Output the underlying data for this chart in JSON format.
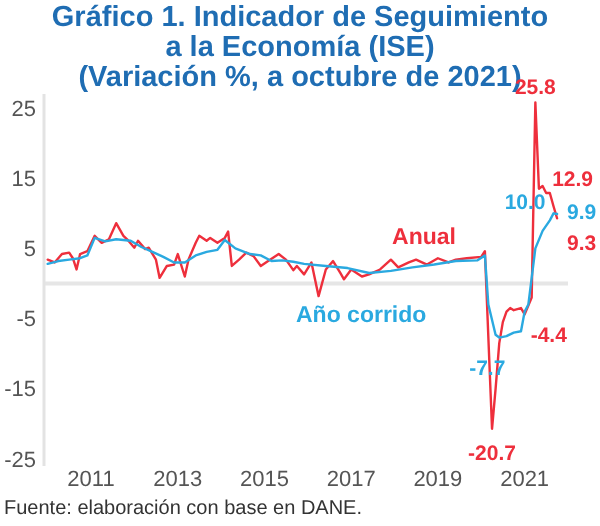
{
  "chart_data": {
    "type": "line",
    "title": "Gráfico 1. Indicador de Seguimiento a la Economía (ISE) (Variación %, a octubre de 2021)",
    "series": [
      {
        "name": "Anual",
        "color": "#ee2f3c",
        "x": [
          "2010-01",
          "2010-03",
          "2010-05",
          "2010-07",
          "2010-08",
          "2010-09",
          "2010-10",
          "2010-12",
          "2011-02",
          "2011-04",
          "2011-06",
          "2011-08",
          "2011-10",
          "2011-11",
          "2012-01",
          "2012-02",
          "2012-04",
          "2012-05",
          "2012-07",
          "2012-08",
          "2012-10",
          "2012-12",
          "2013-01",
          "2013-03",
          "2013-04",
          "2013-06",
          "2013-07",
          "2013-09",
          "2013-10",
          "2013-12",
          "2014-02",
          "2014-03",
          "2014-04",
          "2014-06",
          "2014-08",
          "2014-10",
          "2014-12",
          "2015-02",
          "2015-05",
          "2015-07",
          "2015-09",
          "2015-10",
          "2015-12",
          "2016-02",
          "2016-04",
          "2016-06",
          "2016-08",
          "2016-10",
          "2016-11",
          "2017-01",
          "2017-04",
          "2017-06",
          "2017-09",
          "2017-12",
          "2018-02",
          "2018-05",
          "2018-07",
          "2018-10",
          "2019-01",
          "2019-04",
          "2019-06",
          "2019-09",
          "2020-01",
          "2020-02",
          "2020-04",
          "2020-05",
          "2020-06",
          "2020-07",
          "2020-08",
          "2020-09",
          "2020-10",
          "2020-12",
          "2021-01",
          "2021-03",
          "2021-04",
          "2021-05",
          "2021-06",
          "2021-07",
          "2021-08",
          "2021-09",
          "2021-10"
        ],
        "values": [
          3.4,
          3.0,
          4.2,
          4.4,
          3.6,
          2.0,
          4.2,
          4.6,
          6.8,
          5.8,
          6.3,
          8.6,
          6.8,
          6.3,
          5.1,
          6.1,
          4.9,
          5.1,
          3.4,
          0.8,
          2.5,
          2.7,
          4.2,
          1.0,
          3.4,
          5.8,
          6.8,
          6.1,
          6.5,
          5.8,
          6.5,
          7.4,
          2.5,
          3.4,
          4.4,
          3.9,
          2.5,
          3.2,
          4.2,
          3.4,
          1.9,
          2.5,
          1.3,
          3.0,
          -1.8,
          2.0,
          3.2,
          1.5,
          0.6,
          2.0,
          1.0,
          1.3,
          2.0,
          3.4,
          2.3,
          3.0,
          3.4,
          2.7,
          3.6,
          3.0,
          3.4,
          3.6,
          3.8,
          4.6,
          -20.7,
          -15.0,
          -8.5,
          -5.5,
          -4.0,
          -3.5,
          -3.8,
          -3.5,
          -4.4,
          -2.0,
          25.8,
          13.5,
          13.9,
          12.9,
          12.9,
          11.0,
          9.3
        ]
      },
      {
        "name": "Año corrido",
        "color": "#2aa9e0",
        "x": [
          "2010-01",
          "2010-04",
          "2010-07",
          "2010-10",
          "2010-12",
          "2011-02",
          "2011-05",
          "2011-08",
          "2011-12",
          "2012-03",
          "2012-06",
          "2012-09",
          "2012-12",
          "2013-03",
          "2013-06",
          "2013-09",
          "2013-12",
          "2014-02",
          "2014-05",
          "2014-09",
          "2014-12",
          "2015-03",
          "2015-06",
          "2015-09",
          "2015-12",
          "2016-06",
          "2016-12",
          "2017-06",
          "2017-12",
          "2018-06",
          "2018-12",
          "2019-06",
          "2019-12",
          "2020-02",
          "2020-03",
          "2020-05",
          "2020-06",
          "2020-08",
          "2020-10",
          "2020-12",
          "2021-01",
          "2021-02",
          "2021-04",
          "2021-06",
          "2021-08",
          "2021-09",
          "2021-10"
        ],
        "values": [
          2.8,
          3.2,
          3.4,
          3.6,
          4.0,
          6.5,
          6.0,
          6.3,
          6.1,
          5.2,
          4.5,
          3.8,
          3.0,
          3.0,
          4.0,
          4.5,
          4.8,
          6.2,
          5.0,
          4.2,
          4.0,
          3.2,
          3.3,
          3.1,
          2.8,
          2.5,
          2.2,
          1.5,
          1.8,
          2.3,
          2.7,
          3.2,
          3.3,
          4.0,
          -3.0,
          -7.3,
          -7.7,
          -7.5,
          -7.0,
          -6.8,
          -4.0,
          -3.0,
          5.0,
          7.5,
          9.0,
          10.0,
          9.9
        ]
      }
    ],
    "xlim": [
      "2009-12",
      "2022-01"
    ],
    "xticks": [
      {
        "value": "2011-01",
        "label": "2011"
      },
      {
        "value": "2013-01",
        "label": "2013"
      },
      {
        "value": "2015-01",
        "label": "2015"
      },
      {
        "value": "2017-01",
        "label": "2017"
      },
      {
        "value": "2019-01",
        "label": "2019"
      },
      {
        "value": "2021-01",
        "label": "2021"
      }
    ],
    "ylim": [
      -26,
      27
    ],
    "yticks": [
      -25,
      -15,
      -5,
      5,
      15,
      25
    ],
    "grid": false,
    "legend": false,
    "marker": "none",
    "line_style": "solid",
    "ref_lines": [
      {
        "axis": "y",
        "value": 0,
        "color": "#e6e6e6"
      }
    ],
    "annotations": [
      {
        "text": "25.8",
        "x": "2021-04",
        "y": 25.8
      },
      {
        "text": "12.9",
        "x": "2021-07",
        "y": 12.9
      },
      {
        "text": "9.3",
        "x": "2021-10",
        "y": 9.3
      },
      {
        "text": "9.9",
        "x": "2021-10",
        "y": 9.9
      },
      {
        "text": "10.0",
        "x": "2021-09",
        "y": 10.0
      },
      {
        "text": "-20.7",
        "x": "2020-04",
        "y": -20.7
      },
      {
        "text": "-4.4",
        "x": "2021-01",
        "y": -4.4
      },
      {
        "text": "-7.7",
        "x": "2020-06",
        "y": -7.7
      },
      "Fuente: elaboración con base en DANE."
    ]
  }
}
